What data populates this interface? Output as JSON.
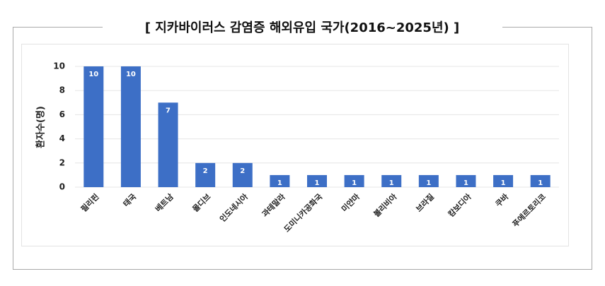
{
  "chart_data": {
    "type": "bar",
    "title": "[ 지카바이러스 감염증 해외유입 국가(2016~2025년) ]",
    "y_label": "환자수(명)",
    "categories": [
      "필리핀",
      "태국",
      "베트남",
      "몰디브",
      "인도네시아",
      "과테말라",
      "도미니카공화국",
      "미얀마",
      "볼리비아",
      "브라질",
      "캄보디아",
      "쿠바",
      "푸에르토리코"
    ],
    "values": [
      10,
      10,
      7,
      2,
      2,
      1,
      1,
      1,
      1,
      1,
      1,
      1,
      1
    ],
    "color": "#3d6fc6",
    "ylim": [
      0,
      10
    ],
    "yticks": [
      0,
      2,
      4,
      6,
      8,
      10
    ],
    "grid": true,
    "data_labels": true
  }
}
